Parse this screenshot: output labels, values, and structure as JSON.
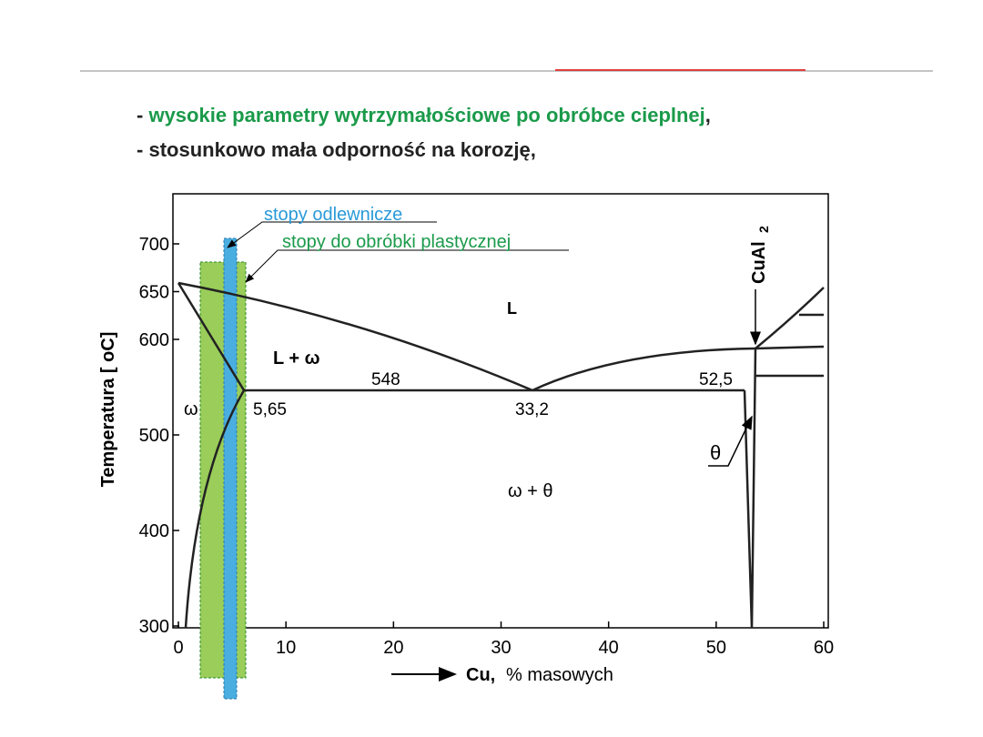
{
  "bullets": [
    {
      "dash": "-",
      "highlight": "wysokie parametry wytrzymałościowe po obróbce cieplnej",
      "tail": ","
    },
    {
      "dash": "-",
      "text": "stosunkowo mała odporność na korozję",
      "tail": ","
    }
  ],
  "diagram": {
    "y_axis_label": "Temperatura [ oC]",
    "x_axis_label_bold": "Cu,",
    "x_axis_label": "% masowych",
    "xticks": [
      0,
      10,
      20,
      30,
      40,
      50,
      60
    ],
    "yticks": [
      300,
      400,
      500,
      600,
      650,
      700
    ],
    "legend": {
      "casting": "stopy odlewnicze",
      "wrought": "stopy do obróbki plastycznej"
    },
    "phases": {
      "liquid": "L",
      "liquid_omega": "L + ω",
      "omega": "ω",
      "omega_theta": "ω + θ",
      "theta": "θ",
      "compound": "CuAl",
      "compound_sub": "2"
    },
    "annotations": {
      "eutectic_temp": "548",
      "solubility": "5,65",
      "eutectic_comp": "33,2",
      "theta_comp": "52,5"
    }
  }
}
